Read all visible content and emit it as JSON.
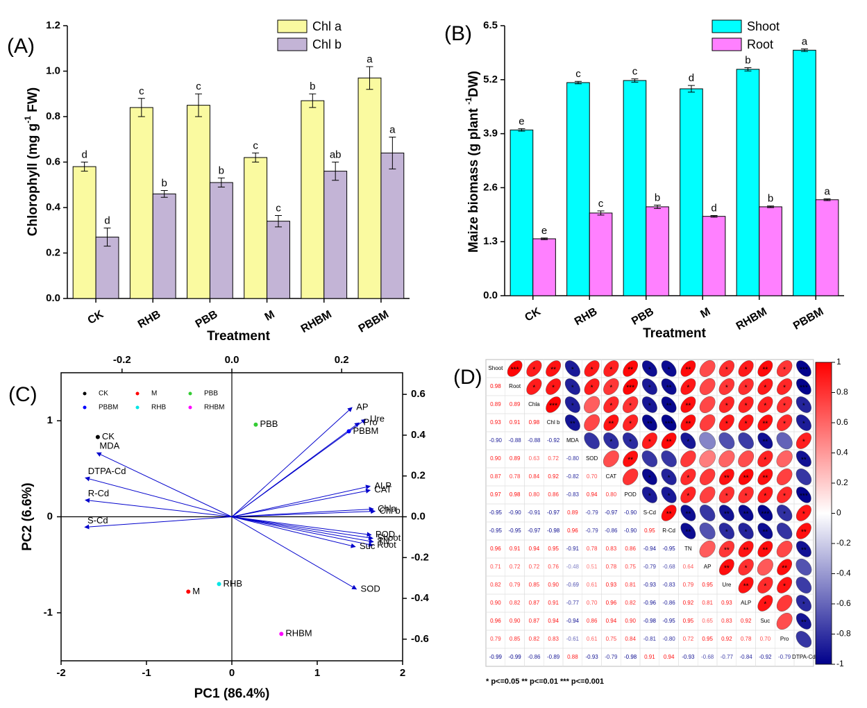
{
  "chart_data": [
    {
      "type": "bar",
      "panel_label": "(A)",
      "xlabel": "Treatment",
      "ylabel": "Chlorophyll  (mg g",
      "ylabel_sup": "-1",
      "ylabel_end": " FW)",
      "categories": [
        "CK",
        "RHB",
        "PBB",
        "M",
        "RHBM",
        "PBBM"
      ],
      "ylim": [
        0,
        1.2
      ],
      "yticks": [
        {
          "value": 0,
          "label": "0.0"
        },
        0.2,
        0.4,
        0.6,
        0.8,
        {
          "value": 1,
          "label": "1.0"
        },
        1.2
      ],
      "legend": "upper right",
      "series": [
        {
          "name": "Chl a",
          "color": "#fafaa0",
          "values": [
            0.58,
            0.84,
            0.85,
            0.62,
            0.87,
            0.97
          ],
          "errors": [
            0.02,
            0.04,
            0.05,
            0.02,
            0.03,
            0.05
          ],
          "letters": [
            "d",
            "c",
            "c",
            "c",
            "b",
            "a"
          ]
        },
        {
          "name": "Chl b",
          "color": "#c3b4d6",
          "values": [
            0.27,
            0.46,
            0.51,
            0.34,
            0.56,
            0.64
          ],
          "errors": [
            0.04,
            0.015,
            0.02,
            0.025,
            0.04,
            0.07
          ],
          "letters": [
            "d",
            "b",
            "b",
            "c",
            "ab",
            "a"
          ]
        }
      ]
    },
    {
      "type": "bar",
      "panel_label": "(B)",
      "xlabel": "Treatment",
      "ylabel": "Maize biomass (g plant ",
      "ylabel_sup": "-1",
      "ylabel_end": "DW)",
      "categories": [
        "CK",
        "RHB",
        "PBB",
        "M",
        "RHBM",
        "PBBM"
      ],
      "ylim": [
        0,
        6.5
      ],
      "yticks": [
        {
          "value": 0,
          "label": "0.0"
        },
        1.3,
        2.6,
        3.9,
        5.2,
        6.5
      ],
      "legend": "upper right",
      "series": [
        {
          "name": "Shoot",
          "color": "#00ffff",
          "values": [
            3.99,
            5.13,
            5.18,
            4.98,
            5.45,
            5.91
          ],
          "errors": [
            0.03,
            0.03,
            0.04,
            0.08,
            0.04,
            0.03
          ],
          "letters": [
            "e",
            "c",
            "c",
            "d",
            "b",
            "a"
          ]
        },
        {
          "name": "Root",
          "color": "#ff80ff",
          "values": [
            1.37,
            1.99,
            2.14,
            1.91,
            2.14,
            2.31
          ],
          "errors": [
            0.02,
            0.05,
            0.04,
            0.02,
            0.02,
            0.02
          ],
          "letters": [
            "e",
            "c",
            "b",
            "d",
            "b",
            "a"
          ]
        }
      ]
    },
    {
      "type": "biplot",
      "panel_label": "(C)",
      "xlabel": "PC1 (86.4%)",
      "ylabel": "PC2 (6.6%)",
      "xlim": [
        -2,
        2
      ],
      "xticks": [
        -2,
        -1,
        0,
        1,
        2
      ],
      "ylim": [
        -1.5,
        1.5
      ],
      "yticks": [
        -1,
        0,
        1
      ],
      "x2lim": [
        -0.311,
        0.311
      ],
      "x2ticks": [
        -0.2,
        {
          "value": 0,
          "label": "0.0"
        },
        0.2
      ],
      "y2lim": [
        -0.706,
        0.706
      ],
      "y2ticks": [
        0.6,
        0.4,
        0.2,
        {
          "value": 0,
          "label": "0.0"
        },
        -0.2,
        -0.4,
        -0.6
      ],
      "legend": "upper left",
      "series": [
        {
          "name": "CK",
          "color": "#000000",
          "x": [
            -1.57
          ],
          "y": [
            0.83
          ]
        },
        {
          "name": "M",
          "color": "#ff0000",
          "x": [
            -0.51
          ],
          "y": [
            -0.78
          ]
        },
        {
          "name": "PBB",
          "color": "#33cc33",
          "x": [
            0.28
          ],
          "y": [
            0.96
          ]
        },
        {
          "name": "PBBM",
          "color": "#0000ff",
          "x": [
            1.37
          ],
          "y": [
            0.89
          ]
        },
        {
          "name": "RHB",
          "color": "#00e5e5",
          "x": [
            -0.15
          ],
          "y": [
            -0.7
          ]
        },
        {
          "name": "RHBM",
          "color": "#ff00ff",
          "x": [
            0.58
          ],
          "y": [
            -1.22
          ]
        }
      ],
      "loadings": {
        "color": "#0000cc",
        "names": [
          "AP",
          "Ure",
          "Pro",
          "ALP",
          "CAT",
          "Chla",
          "Chl b",
          "POD",
          "Shoot",
          "TN",
          "Root",
          "Suc",
          "SOD",
          "MDA",
          "DTPA-Cd",
          "R-Cd",
          "S-Cd"
        ],
        "x": [
          0.219,
          0.244,
          0.232,
          0.252,
          0.252,
          0.258,
          0.261,
          0.254,
          0.257,
          0.258,
          0.257,
          0.225,
          0.227,
          -0.246,
          -0.267,
          -0.267,
          -0.268
        ],
        "y": [
          0.536,
          0.478,
          0.461,
          0.15,
          0.13,
          0.038,
          0.027,
          -0.089,
          -0.106,
          -0.123,
          -0.14,
          -0.147,
          -0.355,
          0.314,
          0.191,
          0.082,
          -0.051
        ]
      }
    },
    {
      "type": "correlogram",
      "panel_label": "(D)",
      "note": "* p<=0.05  ** p<=0.01  *** p<=0.001",
      "zlim": [
        -1,
        1
      ],
      "zticks": [
        1,
        0.8,
        0.6,
        0.4,
        0.2,
        0,
        -0.2,
        -0.4,
        -0.6,
        -0.8,
        -1
      ],
      "variables": [
        "Shoot",
        "Root",
        "Chla",
        "Chl b",
        "MDA",
        "SOD",
        "CAT",
        "POD",
        "S-Cd",
        "R-Cd",
        "TN",
        "AP",
        "Ure",
        "ALP",
        "Suc",
        "Pro",
        "DTPA-Cd"
      ],
      "values": [
        [],
        [
          0.98
        ],
        [
          0.89,
          0.89
        ],
        [
          0.93,
          0.91,
          0.98
        ],
        [
          -0.9,
          -0.88,
          -0.88,
          -0.92
        ],
        [
          0.9,
          0.89,
          0.63,
          0.72,
          -0.8
        ],
        [
          0.87,
          0.78,
          0.84,
          0.92,
          -0.82,
          0.7
        ],
        [
          0.97,
          0.98,
          0.8,
          0.86,
          -0.83,
          0.94,
          0.8
        ],
        [
          -0.95,
          -0.9,
          -0.91,
          -0.97,
          0.89,
          -0.79,
          -0.97,
          -0.9
        ],
        [
          -0.95,
          -0.95,
          -0.97,
          -0.98,
          0.96,
          -0.79,
          -0.86,
          -0.9,
          0.95
        ],
        [
          0.96,
          0.91,
          0.94,
          0.95,
          -0.91,
          0.78,
          0.83,
          0.86,
          -0.94,
          -0.95
        ],
        [
          0.71,
          0.72,
          0.72,
          0.76,
          -0.48,
          0.51,
          0.78,
          0.75,
          -0.79,
          -0.68,
          0.64
        ],
        [
          0.82,
          0.79,
          0.85,
          0.9,
          -0.69,
          0.61,
          0.93,
          0.81,
          -0.93,
          -0.83,
          0.79,
          0.95
        ],
        [
          0.9,
          0.82,
          0.87,
          0.91,
          -0.77,
          0.7,
          0.96,
          0.82,
          -0.96,
          -0.86,
          0.92,
          0.81,
          0.93
        ],
        [
          0.96,
          0.9,
          0.87,
          0.94,
          -0.94,
          0.86,
          0.94,
          0.9,
          -0.98,
          -0.95,
          0.95,
          0.65,
          0.83,
          0.92
        ],
        [
          0.79,
          0.85,
          0.82,
          0.83,
          -0.61,
          0.61,
          0.75,
          0.84,
          -0.81,
          -0.8,
          0.72,
          0.95,
          0.92,
          0.78,
          0.7
        ],
        [
          -0.99,
          -0.99,
          -0.86,
          -0.89,
          0.88,
          -0.93,
          -0.79,
          -0.98,
          0.91,
          0.94,
          -0.93,
          -0.68,
          -0.77,
          -0.84,
          -0.92,
          -0.79
        ]
      ],
      "value_labels": [
        [],
        [
          "0.98"
        ],
        [
          "0.89",
          "0.89"
        ],
        [
          "0.93",
          "0.91",
          "0.98"
        ],
        [
          "-0.90",
          "-0.88",
          "-0.88",
          "-0.92"
        ],
        [
          "0.90",
          "0.89",
          "0.63",
          "0.72",
          "-0.80"
        ],
        [
          "0.87",
          "0.78",
          "0.84",
          "0.92",
          "-0.82",
          "0.70"
        ],
        [
          "0.97",
          "0.98",
          "0.80",
          "0.86",
          "-0.83",
          "0.94",
          "0.80"
        ],
        [
          "-0.95",
          "-0.90",
          "-0.91",
          "-0.97",
          "0.89",
          "-0.79",
          "-0.97",
          "-0.90"
        ],
        [
          "-0.95",
          "-0.95",
          "-0.97",
          "-0.98",
          "0.96",
          "-0.79",
          "-0.86",
          "-0.90",
          "0.95"
        ],
        [
          "0.96",
          "0.91",
          "0.94",
          "0.95",
          "-0.91",
          "0.78",
          "0.83",
          "0.86",
          "-0.94",
          "-0.95"
        ],
        [
          "0.71",
          "0.72",
          "0.72",
          "0.76",
          "-0.48",
          "0.51",
          "0.78",
          "0.75",
          "-0.79",
          "-0.68",
          "0.64"
        ],
        [
          "0.82",
          "0.79",
          "0.85",
          "0.90",
          "-0.69",
          "0.61",
          "0.93",
          "0.81",
          "-0.93",
          "-0.83",
          "0.79",
          "0.95"
        ],
        [
          "0.90",
          "0.82",
          "0.87",
          "0.91",
          "-0.77",
          "0.70",
          "0.96",
          "0.82",
          "-0.96",
          "-0.86",
          "0.92",
          "0.81",
          "0.93"
        ],
        [
          "0.96",
          "0.90",
          "0.87",
          "0.94",
          "-0.94",
          "0.86",
          "0.94",
          "0.90",
          "-0.98",
          "-0.95",
          "0.95",
          "0.65",
          "0.83",
          "0.92"
        ],
        [
          "0.79",
          "0.85",
          "0.82",
          "0.83",
          "-0.61",
          "0.61",
          "0.75",
          "0.84",
          "-0.81",
          "-0.80",
          "0.72",
          "0.95",
          "0.92",
          "0.78",
          "0.70"
        ],
        [
          "-0.99",
          "-0.99",
          "-0.86",
          "-0.89",
          "0.88",
          "-0.93",
          "-0.79",
          "-0.98",
          "0.91",
          "0.94",
          "-0.93",
          "-0.68",
          "-0.77",
          "-0.84",
          "-0.92",
          "-0.79"
        ]
      ],
      "stars": [
        [
          "***",
          "*",
          "**",
          "*",
          "*",
          "*",
          "**",
          "*",
          "*",
          "**",
          null,
          "*",
          "*",
          "**",
          "*",
          "***"
        ],
        [
          "*",
          "*",
          "*",
          "*",
          "*",
          "***",
          "*",
          "**",
          "*",
          null,
          "*",
          "*",
          "*",
          "*",
          "***"
        ],
        [
          "***",
          "*",
          null,
          "*",
          "*",
          "*",
          "**",
          "**",
          null,
          "*",
          "*",
          "*",
          "*",
          "*"
        ],
        [
          "**",
          null,
          "**",
          "*",
          "**",
          "***",
          "**",
          null,
          "*",
          "*",
          "**",
          "*",
          "*"
        ],
        [
          null,
          "*",
          "*",
          "*",
          "**",
          "*",
          null,
          null,
          null,
          "**",
          null,
          "*"
        ],
        [
          null,
          "**",
          null,
          null,
          null,
          null,
          null,
          null,
          "*",
          null,
          "**"
        ],
        [
          null,
          "*",
          "*",
          "*",
          null,
          "**",
          "**",
          "**",
          null,
          null
        ],
        [
          "*",
          "*",
          "*",
          null,
          "*",
          "*",
          "*",
          "*",
          "***"
        ],
        [
          "**",
          "**",
          null,
          "**",
          "**",
          "***",
          "*",
          "*"
        ],
        [
          "**",
          null,
          "*",
          "*",
          "**",
          null,
          "**"
        ],
        [
          null,
          "**",
          "**",
          "**",
          null,
          "**"
        ],
        [
          "**",
          "*",
          null,
          "**",
          null
        ],
        [
          "**",
          "*",
          "*",
          null
        ],
        [
          "*",
          null,
          "*"
        ],
        [
          null,
          "**"
        ],
        [
          null
        ],
        []
      ]
    }
  ]
}
